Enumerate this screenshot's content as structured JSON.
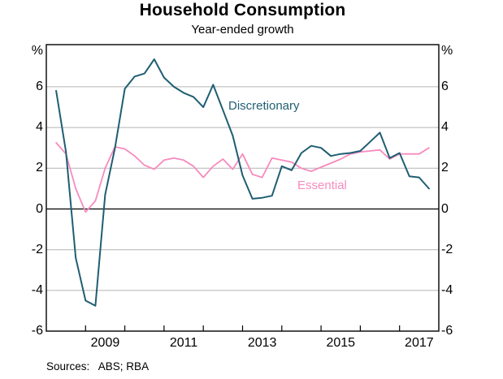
{
  "header": {
    "title": "Household Consumption",
    "subtitle": "Year-ended growth"
  },
  "axes": {
    "percent_left": "%",
    "percent_right": "%",
    "y_tick_values": [
      6,
      4,
      2,
      0,
      -2,
      -4,
      -6
    ],
    "y_gridline_values": [
      6,
      4,
      2,
      -2,
      -4
    ],
    "x_tick_years": [
      2009,
      2010,
      2011,
      2012,
      2013,
      2014,
      2015,
      2016,
      2017
    ],
    "x_label_years": [
      2009,
      2011,
      2013,
      2015,
      2017
    ]
  },
  "labels": {
    "discretionary": "Discretionary",
    "essential": "Essential"
  },
  "footer": {
    "label": "Sources:",
    "text": "ABS; RBA"
  },
  "colors": {
    "discretionary": "#1f5e72",
    "essential": "#f78bbd",
    "gridline": "#b4b4b4",
    "axis": "#000000"
  },
  "chart_data": {
    "type": "line",
    "title": "Household Consumption",
    "subtitle": "Year-ended growth",
    "unit": "%",
    "frequency": "quarterly",
    "xlim": [
      2008,
      2018
    ],
    "ylim": [
      -6,
      8
    ],
    "grid": "horizontal",
    "zero_line": true,
    "x": [
      2008.25,
      2008.5,
      2008.75,
      2009.0,
      2009.25,
      2009.5,
      2009.75,
      2010.0,
      2010.25,
      2010.5,
      2010.75,
      2011.0,
      2011.25,
      2011.5,
      2011.75,
      2012.0,
      2012.25,
      2012.5,
      2012.75,
      2013.0,
      2013.25,
      2013.5,
      2013.75,
      2014.0,
      2014.25,
      2014.5,
      2014.75,
      2015.0,
      2015.25,
      2015.5,
      2015.75,
      2016.0,
      2016.25,
      2016.5,
      2016.75,
      2017.0,
      2017.25,
      2017.5,
      2017.75
    ],
    "series": [
      {
        "name": "Discretionary",
        "color": "#1f5e72",
        "values": [
          5.8,
          2.8,
          -2.4,
          -4.5,
          -4.75,
          0.7,
          3.0,
          5.9,
          6.5,
          6.65,
          7.35,
          6.45,
          6.0,
          5.7,
          5.5,
          5.0,
          6.1,
          4.85,
          3.6,
          1.65,
          0.5,
          0.55,
          0.65,
          2.1,
          1.9,
          2.75,
          3.1,
          3.0,
          2.6,
          2.7,
          2.75,
          2.85,
          3.3,
          3.75,
          2.5,
          2.75,
          1.6,
          1.55,
          1.0
        ]
      },
      {
        "name": "Essential",
        "color": "#f78bbd",
        "values": [
          3.25,
          2.7,
          1.0,
          -0.15,
          0.4,
          2.0,
          3.05,
          2.95,
          2.6,
          2.15,
          1.95,
          2.4,
          2.5,
          2.4,
          2.1,
          1.55,
          2.1,
          2.45,
          1.95,
          2.7,
          1.7,
          1.55,
          2.5,
          2.4,
          2.3,
          2.0,
          1.85,
          2.05,
          2.25,
          2.45,
          2.7,
          2.8,
          2.85,
          2.9,
          2.45,
          2.7,
          2.7,
          2.7,
          3.0
        ]
      }
    ],
    "sources": "Sources: ABS; RBA"
  }
}
